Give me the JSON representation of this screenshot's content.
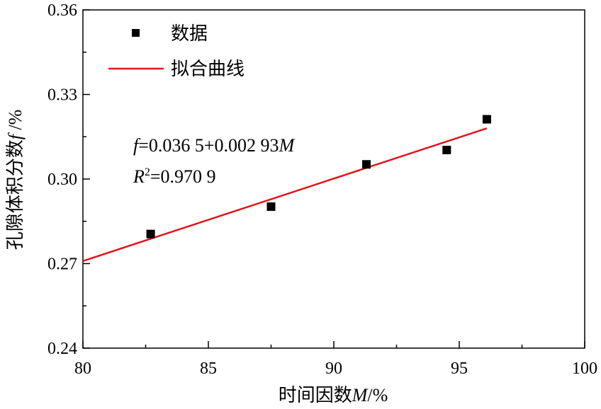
{
  "chart_data": {
    "type": "scatter",
    "title": "",
    "xlabel": {
      "prefix": "时间因数",
      "var": "M",
      "suffix": "/%"
    },
    "ylabel": {
      "prefix": "孔隙体积分数",
      "var": "f",
      "suffix": " /%"
    },
    "xlim": [
      80,
      100
    ],
    "ylim": [
      0.24,
      0.36
    ],
    "x_ticks": [
      "80",
      "85",
      "90",
      "95",
      "100"
    ],
    "y_ticks": [
      "0.24",
      "0.27",
      "0.30",
      "0.33",
      "0.36"
    ],
    "legend": {
      "position": "top-left",
      "points_label": "数据",
      "line_label": "拟合曲线"
    },
    "series": [
      {
        "name": "数据",
        "kind": "points",
        "x": [
          82.7,
          87.5,
          91.3,
          94.5,
          96.1
        ],
        "y": [
          0.2805,
          0.2902,
          0.3052,
          0.3103,
          0.3212
        ],
        "color": "#000000"
      },
      {
        "name": "拟合曲线",
        "kind": "line",
        "x": [
          80,
          96.1
        ],
        "y": [
          0.2709,
          0.318
        ],
        "color": "#e0161c"
      }
    ],
    "annotations": {
      "equation": {
        "var": "f",
        "rest": "=0.036 5+0.002 93",
        "var2": "M"
      },
      "r2": {
        "base": "R",
        "sup": "2",
        "rest": "=0.970 9"
      }
    },
    "grid": false
  }
}
